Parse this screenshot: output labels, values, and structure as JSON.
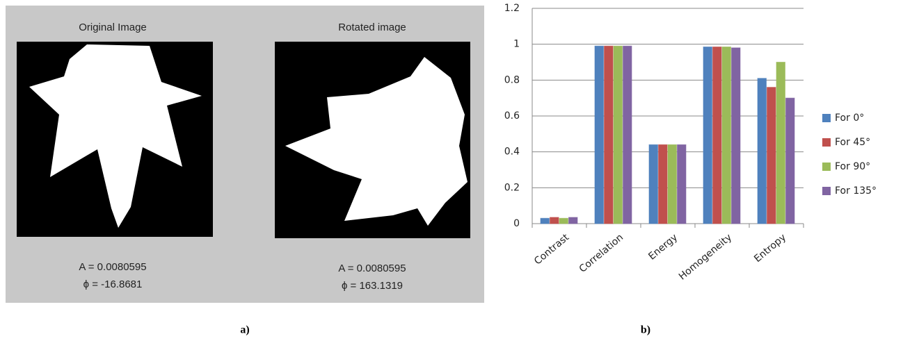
{
  "panel_a": {
    "label": "a)",
    "images": [
      {
        "title": "Original Image",
        "line1": "A = 0.0080595",
        "line2": "ϕ = -16.8681"
      },
      {
        "title": "Rotated image",
        "line1": "A = 0.0080595",
        "line2": "ϕ = 163.1319"
      }
    ]
  },
  "panel_b": {
    "label": "b)"
  },
  "chart_data": {
    "type": "bar",
    "categories": [
      "Contrast",
      "Correlation",
      "Energy",
      "Homogeneity",
      "Entropy"
    ],
    "series": [
      {
        "name": "For 0°",
        "color": "#4f81bd",
        "values": [
          0.03,
          0.99,
          0.44,
          0.985,
          0.81
        ]
      },
      {
        "name": "For 45°",
        "color": "#c0504d",
        "values": [
          0.035,
          0.99,
          0.44,
          0.985,
          0.76
        ]
      },
      {
        "name": "For 90°",
        "color": "#9bbb59",
        "values": [
          0.03,
          0.99,
          0.44,
          0.985,
          0.9
        ]
      },
      {
        "name": "For 135°",
        "color": "#8064a2",
        "values": [
          0.035,
          0.99,
          0.44,
          0.98,
          0.7
        ]
      }
    ],
    "ylim": [
      0,
      1.2
    ],
    "yticks": [
      0,
      0.2,
      0.4,
      0.6,
      0.8,
      1,
      1.2
    ],
    "grid": true,
    "legend": "right"
  }
}
